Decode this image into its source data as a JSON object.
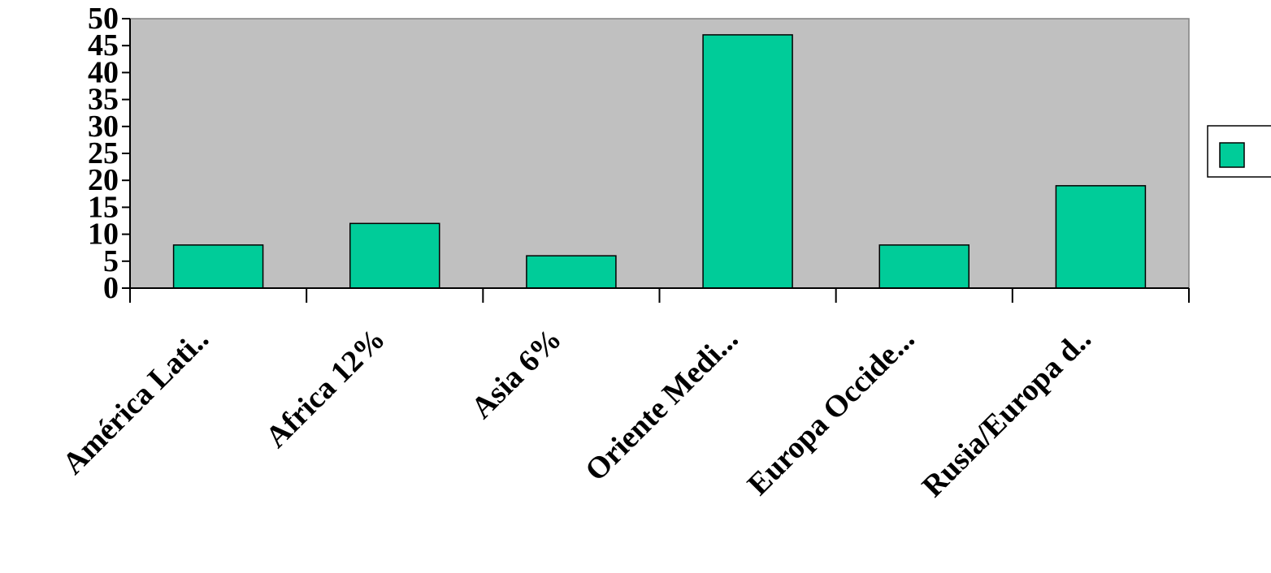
{
  "chart_data": {
    "type": "bar",
    "title": "",
    "xlabel": "",
    "ylabel": "",
    "categories": [
      "América Lati..",
      "Africa 12%",
      "Asia 6%",
      "Oriente Medi...",
      "Europa Occide...",
      "Rusia/Europa d.."
    ],
    "values": [
      8,
      12,
      6,
      47,
      8,
      19
    ],
    "ylim": [
      0,
      50
    ],
    "yticks": [
      "0",
      "5",
      "10",
      "15",
      "20",
      "25",
      "30",
      "35",
      "40",
      "45",
      "50"
    ],
    "grid": false,
    "legend": {
      "position": "right",
      "entries": [
        ""
      ]
    },
    "colors": {
      "bar": "#00CC99",
      "plot_background": "#C0C0C0",
      "outline": "#000000"
    }
  }
}
